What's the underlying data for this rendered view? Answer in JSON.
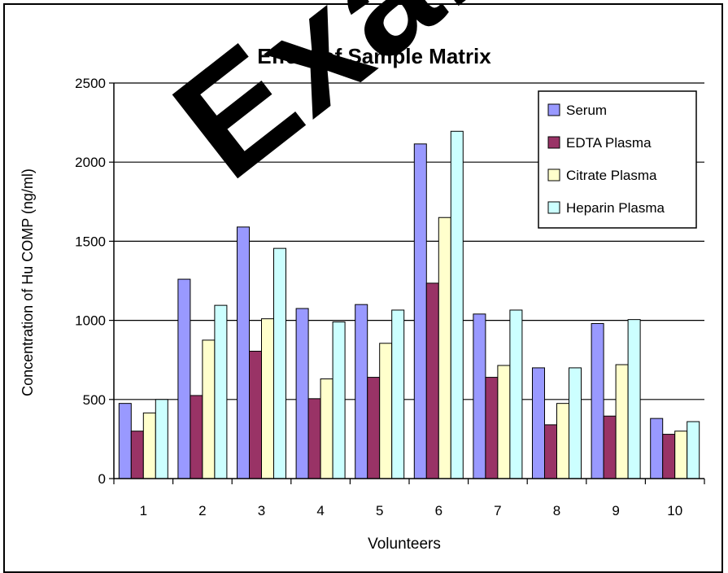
{
  "watermark": "Exam",
  "chart_data": {
    "type": "bar",
    "title": "Effect of Sample Matrix",
    "xlabel": "Volunteers",
    "ylabel": "Concentration of Hu COMP (ng/ml)",
    "ylim": [
      0,
      2500
    ],
    "yticks": [
      0,
      500,
      1000,
      1500,
      2000,
      2500
    ],
    "grid": true,
    "legend_position": "top-right",
    "categories": [
      "1",
      "2",
      "3",
      "4",
      "5",
      "6",
      "7",
      "8",
      "9",
      "10"
    ],
    "series": [
      {
        "name": "Serum",
        "color": "#9999ff",
        "values": [
          475,
          1260,
          1590,
          1075,
          1100,
          2115,
          1040,
          700,
          980,
          380
        ]
      },
      {
        "name": "EDTA Plasma",
        "color": "#993366",
        "values": [
          300,
          525,
          805,
          505,
          640,
          1235,
          640,
          340,
          395,
          280
        ]
      },
      {
        "name": "Citrate Plasma",
        "color": "#ffffcc",
        "values": [
          415,
          875,
          1010,
          630,
          855,
          1650,
          715,
          475,
          720,
          300
        ]
      },
      {
        "name": "Heparin Plasma",
        "color": "#ccffff",
        "values": [
          500,
          1095,
          1455,
          990,
          1065,
          2195,
          1065,
          700,
          1005,
          360
        ]
      }
    ]
  }
}
